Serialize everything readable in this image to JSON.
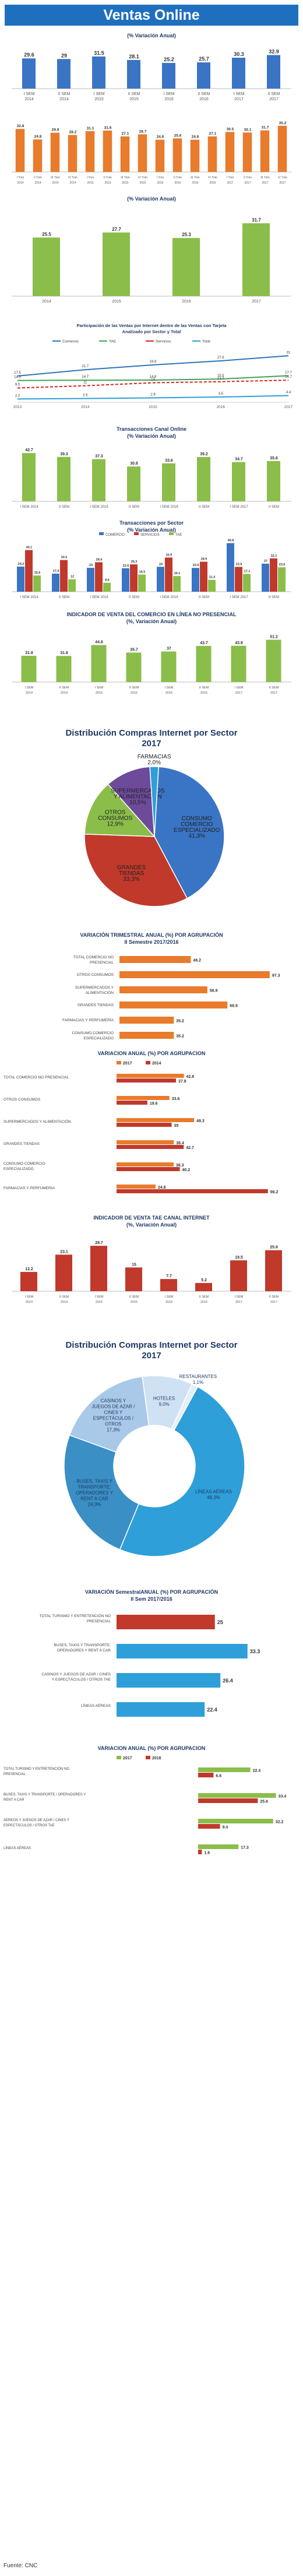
{
  "header": {
    "title": "Ventas Online"
  },
  "source": "Fuente: CNC",
  "charts": [
    {
      "type": "bar",
      "title": "(% Variación Anual)",
      "categories": [
        "I SEM 2014",
        "II SEM 2014",
        "I SEM 2015",
        "II SEM 2015",
        "I SEM 2016",
        "II SEM 2016",
        "I SEM 2017",
        "II SEM 2017"
      ],
      "values": [
        29.6,
        29.0,
        31.5,
        28.1,
        25.2,
        25.7,
        30.3,
        32.9
      ],
      "ylim": [
        0,
        40
      ],
      "color": "#3a74c4"
    },
    {
      "type": "bar",
      "title": "",
      "categories": [
        "I Trim 2014",
        "II Trim 2014",
        "III Trim 2014",
        "IV Trim 2014",
        "I Trim 2015",
        "II Trim 2015",
        "III Trim 2015",
        "IV Trim 2015",
        "I Trim 2016",
        "II Trim 2016",
        "III Trim 2016",
        "IV Trim 2016",
        "I Trim 2017",
        "II Trim 2017",
        "III Trim 2017",
        "IV Trim 2017"
      ],
      "values": [
        32.8,
        24.8,
        29.9,
        28.2,
        31.1,
        31.6,
        27.1,
        28.7,
        24.6,
        25.6,
        24.6,
        27.1,
        30.5,
        30.1,
        31.7,
        35.2
      ],
      "ylim": [
        0,
        40
      ],
      "color": "#e87b2c"
    },
    {
      "type": "bar",
      "title": "(% Variación Anual)",
      "categories": [
        "2014",
        "2015",
        "2016",
        "2017"
      ],
      "values": [
        25.5,
        27.7,
        25.3,
        31.7
      ],
      "ylim": [
        0,
        35
      ],
      "color": "#8bbd4a"
    },
    {
      "type": "line",
      "title": "Participación de las Ventas por Internet dentro de las Ventas con Tarjeta\nAnalizado por Sector y Total",
      "categories": [
        "2013",
        "2014",
        "2015",
        "2016",
        "2017"
      ],
      "series": [
        {
          "name": "Comercio",
          "color": "#2e75b6",
          "values": [
            17.5,
            21.7,
            24.9,
            27.6,
            31.0
          ]
        },
        {
          "name": "TAE",
          "color": "#3aa657",
          "values": [
            14.5,
            14.7,
            14.8,
            15.5,
            17.7
          ]
        },
        {
          "name": "Servicios",
          "color": "#e02020",
          "values": [
            9.5,
            11.0,
            13.0,
            13.7,
            14.7
          ]
        },
        {
          "name": "Total",
          "color": "#2e9fd8",
          "values": [
            2.2,
            2.5,
            2.9,
            3.5,
            4.4
          ]
        }
      ],
      "labels": [
        [
          17.5,
          21.7,
          24.9,
          27.6,
          31.0
        ],
        [
          14.5,
          14.7,
          14.8,
          15.5,
          17.7
        ],
        [
          9.5,
          11.0,
          13.0,
          13.7,
          14.7
        ],
        [
          2.2,
          2.5,
          2.9,
          3.5,
          4.4
        ]
      ],
      "ylim": [
        0,
        35
      ]
    },
    {
      "type": "bar",
      "title": "Transacciones Canal Online\n(% Variación Anual)",
      "categories": [
        "I SEM 2014",
        "II SEM",
        "I SEM 2015",
        "II SEM",
        "I SEM 2016",
        "II SEM",
        "I SEM 2017",
        "II SEM"
      ],
      "values": [
        42.7,
        39.3,
        37.3,
        30.8,
        33.6,
        39.2,
        34.7,
        35.6
      ],
      "ylim": [
        0,
        50
      ],
      "color": "#8bbd4a"
    },
    {
      "type": "bar",
      "title": "Transacciones por Sector\n(% Variación Anual)",
      "categories": [
        "I SEM 2014",
        "II SEM",
        "I SEM 2015",
        "II SEM",
        "I SEM 2016",
        "II SEM",
        "I SEM 2017",
        "II SEM"
      ],
      "series": [
        {
          "name": "COMERCIO",
          "color": "#3a74c4",
          "values": [
            24.2,
            17.4,
            23.0,
            22.6,
            24.0,
            22.9,
            46.8,
            27.0
          ]
        },
        {
          "name": "SERVICIOS",
          "color": "#c0392b",
          "values": [
            40.1,
            30.5,
            28.4,
            26.3,
            32.9,
            28.9,
            23.9,
            32.1
          ]
        },
        {
          "name": "TAE",
          "color": "#8bbd4a",
          "values": [
            15.6,
            12.0,
            8.6,
            16.5,
            15.1,
            11.4,
            17.1,
            23.5
          ]
        }
      ],
      "ylim": [
        0,
        50
      ]
    },
    {
      "type": "bar",
      "title": "INDICADOR DE VENTA DEL COMERCIO EN LÍNEA NO PRESENCIAL\n(%, Variación Anual)",
      "categories": [
        "I SEM 2014",
        "II SEM 2014",
        "I SEM 2015",
        "II SEM 2015",
        "I SEM 2016",
        "II SEM 2016",
        "I SEM 2017",
        "II SEM 2017"
      ],
      "values": [
        31.8,
        31.6,
        44.8,
        35.7,
        37.0,
        43.7,
        43.9,
        51.2
      ],
      "ylim": [
        0,
        60
      ],
      "color": "#8bbd4a"
    },
    {
      "type": "pie",
      "title": "Distribución Compras Internet por Sector\n2017",
      "slices": [
        {
          "label": "CONSUMO COMERCIO ESPECIALIZADO",
          "value": 41.3,
          "color": "#3a74c4"
        },
        {
          "label": "GRANDES TIENDAS",
          "value": 33.3,
          "color": "#c0392b"
        },
        {
          "label": "OTROS CONSUMOS",
          "value": 12.9,
          "color": "#8bbd4a"
        },
        {
          "label": "SUPERMERCADOS Y ALIMENTACIÓN",
          "value": 10.5,
          "color": "#6d4a9a"
        },
        {
          "label": "FARMACIAS",
          "value": 2.0,
          "color": "#2e9fd8"
        }
      ]
    },
    {
      "type": "bar",
      "orientation": "horizontal",
      "title": "VARIACIÓN TRIMESTRAL ANUAL (%) POR AGRUPACIÓN\nII Semestre 2017/2016",
      "categories": [
        "TOTAL COMERCIO NO PRESENCIAL",
        "OTROS CONSUMOS",
        "SUPERMERCADOS Y ALIMENTACIÓN",
        "GRANDES TIENDAS",
        "FARMACIAS Y PERFUMERÍA",
        "CONSUMO COMERCIO ESPECIALIZADO"
      ],
      "values": [
        46.2,
        97.3,
        56.9,
        69.9,
        35.2,
        35.2
      ],
      "ylim": [
        0,
        100
      ],
      "color": "#e87b2c"
    },
    {
      "type": "bar",
      "orientation": "horizontal",
      "title": "VARIACION ANUAL (%) POR AGRUPACION",
      "categories": [
        "TOTAL COMERCIO NO PRESENCIAL",
        "OTROS CONSUMOS",
        "SUPERMERCADOS Y ALIMENTACIÓN",
        "GRANDES TIENDAS",
        "CONSUMO COMERCIO ESPECIALIZADO",
        "FARMACIAS Y PERFUMERIA"
      ],
      "series": [
        {
          "name": "2017",
          "color": "#e87b2c",
          "values": [
            42.8,
            33.6,
            49.3,
            36.4,
            36.3,
            24.8
          ]
        },
        {
          "name": "2014",
          "color": "#c0392b",
          "values": [
            37.8,
            19.6,
            35.0,
            42.7,
            40.2,
            96.2
          ]
        }
      ],
      "ylim": [
        0,
        100
      ]
    },
    {
      "type": "bar",
      "title": "INDICADOR DE VENTA TAE CANAL INTERNET\n(%, Variación Anual)",
      "categories": [
        "I SEM 2014",
        "II SEM 2014",
        "I SEM 2015",
        "II SEM 2015",
        "I SEM 2016",
        "II SEM 2016",
        "I SEM 2017",
        "II SEM 2017"
      ],
      "values": [
        12.2,
        23.1,
        28.7,
        15.0,
        7.7,
        5.2,
        19.5,
        25.9
      ],
      "ylim": [
        0,
        35
      ],
      "color": "#c0392b"
    },
    {
      "type": "pie",
      "title": "Distribución Compras Internet por Sector\n2017",
      "slices": [
        {
          "label": "LÍNEAS AÉREAS",
          "value": 48.3,
          "color": "#2e9fd8"
        },
        {
          "label": "BUSES, TAXIS Y TRANSPORTE; OPERADORES Y RENT A CAR",
          "value": 24.3,
          "color": "#3a8fc4"
        },
        {
          "label": "CASINOS Y JUEGOS DE AZAR / CINES Y ESPECTÁCULOS / OTROS",
          "value": 17.3,
          "color": "#a9c9e8"
        },
        {
          "label": "HOTELES",
          "value": 9.0,
          "color": "#cfe2f3"
        },
        {
          "label": "RESTAURANTES",
          "value": 1.1,
          "color": "#e6eff8"
        }
      ]
    },
    {
      "type": "bar",
      "orientation": "horizontal",
      "title": "VARIACIÓN SemestralANUAL (%) POR AGRUPACIÓN\nII Sem 2017/2016",
      "categories": [
        "TOTAL TURISMO Y ENTRETENCIÓN NO PRESENCIAL",
        "BUSES, TAXIS Y TRANSPORTE; OPERADORES Y RENT A CAR",
        "CASINOS Y JUEGOS DE AZAR / CINES Y ESPECTÁCULOS / OTROS TAE",
        "LÍNEAS AÉREAS"
      ],
      "values": [
        25.0,
        33.3,
        26.4,
        22.4
      ],
      "colors": [
        "#c0392b",
        "#2e9fd8",
        "#2e9fd8",
        "#2e9fd8"
      ],
      "ylim": [
        0,
        40
      ]
    },
    {
      "type": "bar",
      "orientation": "horizontal",
      "title": "VARIACION ANUAL (%) POR AGRUPACION",
      "categories": [
        "TOTAL TURISMO Y ENTRETENCIÓN NO PRESENCIAL",
        "BUSES, TAXIS Y TRANSPORTE / OPERADORES Y RENT A CAR",
        "ÁEREOS Y JUEGOS DE AZAR / CINES Y ESPECTÁCULOS / OTROS TAE",
        "LÍNEAS AÉREAS"
      ],
      "series": [
        {
          "name": "2017",
          "color": "#8bbd4a",
          "values": [
            22.4,
            33.4,
            32.2,
            17.3
          ]
        },
        {
          "name": "2016",
          "color": "#c0392b",
          "values": [
            6.6,
            25.6,
            9.4,
            1.6
          ]
        }
      ],
      "ylim": [
        0,
        40
      ]
    }
  ]
}
